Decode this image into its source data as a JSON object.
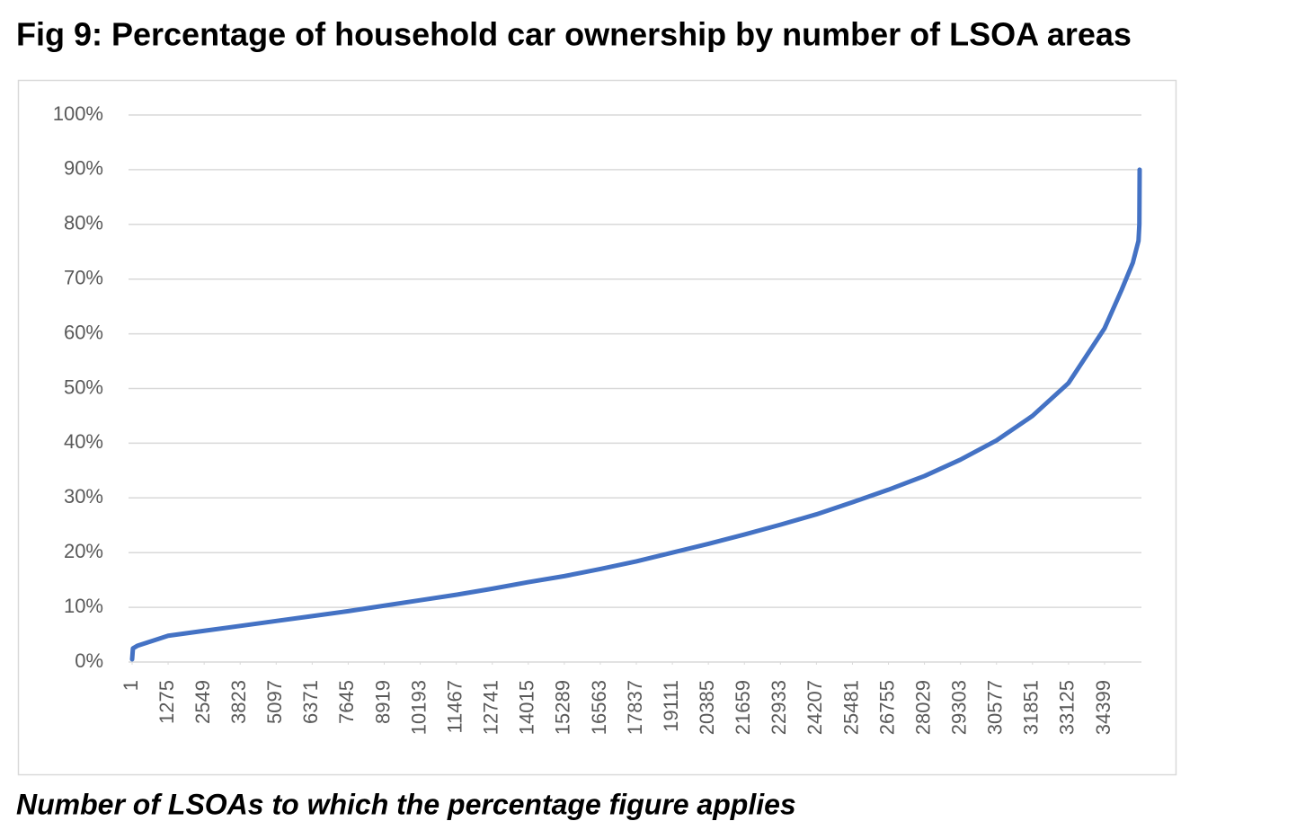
{
  "chart_data": {
    "type": "line",
    "title": "Fig 9: Percentage of household car ownership by number of LSOA areas",
    "x_label": "Number of LSOAs to which the percentage figure applies",
    "xlim": [
      1,
      35640
    ],
    "xticks": [
      1,
      1275,
      2549,
      3823,
      5097,
      6371,
      7645,
      8919,
      10193,
      11467,
      12741,
      14015,
      15289,
      16563,
      17837,
      19111,
      20385,
      21659,
      22933,
      24207,
      25481,
      26755,
      28029,
      29303,
      30577,
      31851,
      33125,
      34399
    ],
    "ylim": [
      0,
      100
    ],
    "yticks": [
      {
        "value": 0,
        "label": "0%"
      },
      {
        "value": 10,
        "label": "10%"
      },
      {
        "value": 20,
        "label": "20%"
      },
      {
        "value": 30,
        "label": "30%"
      },
      {
        "value": 40,
        "label": "40%"
      },
      {
        "value": 50,
        "label": "50%"
      },
      {
        "value": 60,
        "label": "60%"
      },
      {
        "value": 70,
        "label": "70%"
      },
      {
        "value": 80,
        "label": "80%"
      },
      {
        "value": 90,
        "label": "90%"
      },
      {
        "value": 100,
        "label": "100%"
      }
    ],
    "grid": true,
    "series": [
      {
        "color": "#4472c4",
        "x": [
          1,
          30,
          200,
          800,
          1275,
          2549,
          3823,
          5097,
          6371,
          7645,
          8919,
          10193,
          11467,
          12741,
          14015,
          15289,
          16563,
          17837,
          19111,
          20385,
          21659,
          22933,
          24207,
          25481,
          26755,
          28029,
          29303,
          30577,
          31851,
          33125,
          34399,
          35000,
          35400,
          35600,
          35630,
          35640
        ],
        "values": [
          0.5,
          2.5,
          3,
          4,
          4.8,
          5.7,
          6.6,
          7.5,
          8.4,
          9.3,
          10.3,
          11.3,
          12.3,
          13.4,
          14.6,
          15.7,
          17,
          18.4,
          20,
          21.6,
          23.3,
          25.1,
          27,
          29.2,
          31.5,
          34,
          37,
          40.5,
          45,
          51,
          61,
          68,
          73,
          77,
          80,
          90
        ]
      }
    ]
  }
}
